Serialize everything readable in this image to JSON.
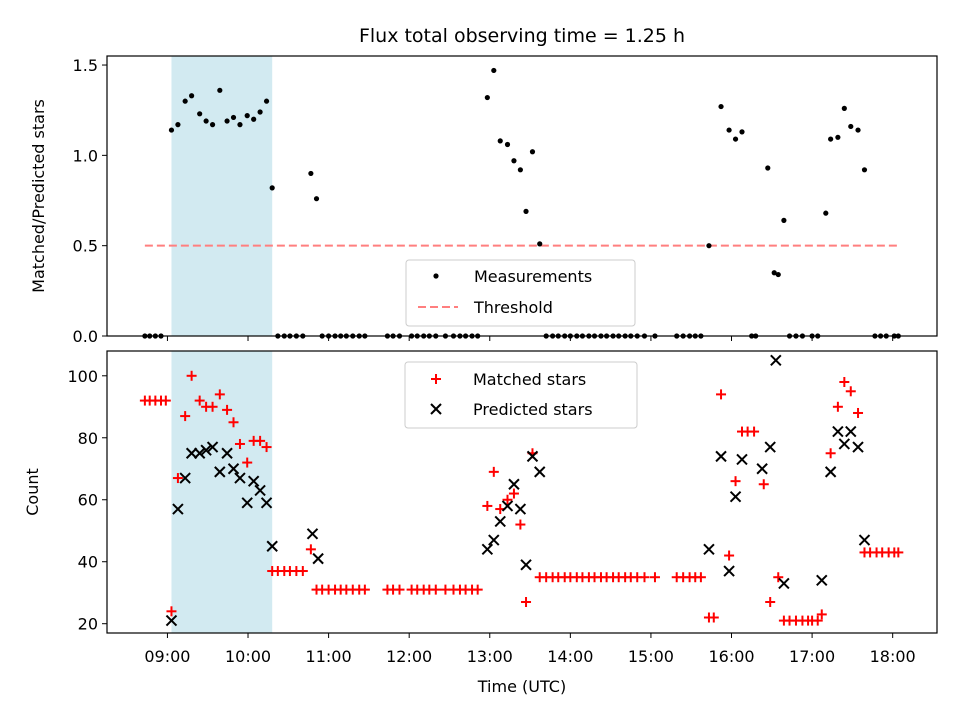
{
  "title": "Flux total observing time = 1.25 h",
  "colors": {
    "highlight": "#add8e6",
    "threshold": "#ff7f7f",
    "measurement": "#000000",
    "matched": "#ff0000",
    "predicted": "#000000"
  },
  "chart_data": [
    {
      "type": "scatter",
      "ylabel": "Matched/Predicted stars",
      "xlim_hours": [
        8.25,
        18.55
      ],
      "ylim": [
        0,
        1.55
      ],
      "yticks": [
        0.0,
        0.5,
        1.0,
        1.5
      ],
      "ytick_labels": [
        "0.0",
        "0.5",
        "1.0",
        "1.5"
      ],
      "highlight_span_hours": [
        9.05,
        10.3
      ],
      "legend": {
        "position": "lower-center",
        "labels": [
          "Measurements",
          "Threshold"
        ]
      },
      "threshold": {
        "name": "Threshold",
        "y": 0.5,
        "x_range_hours": [
          8.72,
          18.1
        ]
      },
      "series": [
        {
          "name": "Measurements",
          "marker": "dot",
          "x": [
            8.72,
            8.78,
            8.85,
            8.92,
            9.05,
            9.13,
            9.22,
            9.3,
            9.4,
            9.48,
            9.56,
            9.65,
            9.74,
            9.82,
            9.9,
            9.99,
            10.07,
            10.15,
            10.23,
            10.3,
            10.37,
            10.45,
            10.52,
            10.6,
            10.68,
            10.78,
            10.85,
            10.92,
            11.0,
            11.08,
            11.15,
            11.22,
            11.3,
            11.38,
            11.45,
            11.73,
            11.8,
            11.88,
            12.03,
            12.1,
            12.18,
            12.25,
            12.33,
            12.45,
            12.55,
            12.63,
            12.7,
            12.78,
            12.85,
            12.97,
            13.05,
            13.13,
            13.22,
            13.3,
            13.38,
            13.45,
            13.53,
            13.62,
            13.7,
            13.78,
            13.85,
            13.93,
            14.0,
            14.08,
            14.15,
            14.23,
            14.3,
            14.38,
            14.45,
            14.53,
            14.6,
            14.68,
            14.75,
            14.83,
            14.92,
            15.05,
            15.32,
            15.4,
            15.48,
            15.55,
            15.62,
            15.72,
            15.87,
            15.97,
            16.05,
            16.13,
            16.25,
            16.3,
            16.45,
            16.53,
            16.58,
            16.65,
            16.72,
            16.8,
            16.88,
            17.0,
            17.07,
            17.17,
            17.23,
            17.32,
            17.4,
            17.48,
            17.57,
            17.65,
            17.78,
            17.85,
            17.92,
            18.02,
            18.07
          ],
          "y": [
            0,
            0,
            0,
            0,
            1.14,
            1.17,
            1.3,
            1.33,
            1.23,
            1.19,
            1.17,
            1.36,
            1.19,
            1.21,
            1.17,
            1.22,
            1.2,
            1.24,
            1.3,
            0.82,
            0,
            0,
            0,
            0,
            0,
            0.9,
            0.76,
            0,
            0,
            0,
            0,
            0,
            0,
            0,
            0,
            0,
            0,
            0,
            0,
            0,
            0,
            0,
            0,
            0,
            0,
            0,
            0,
            0,
            0,
            1.32,
            1.47,
            1.08,
            1.06,
            0.97,
            0.92,
            0.69,
            1.02,
            0.51,
            0,
            0,
            0,
            0,
            0,
            0,
            0,
            0,
            0,
            0,
            0,
            0,
            0,
            0,
            0,
            0,
            0,
            0,
            0,
            0,
            0,
            0,
            0,
            0.5,
            1.27,
            1.14,
            1.09,
            1.13,
            0,
            0,
            0.93,
            0.35,
            0.34,
            0.64,
            0,
            0,
            0,
            0,
            0,
            0.68,
            1.09,
            1.1,
            1.26,
            1.16,
            1.14,
            0.92,
            0,
            0,
            0,
            0,
            0
          ]
        }
      ]
    },
    {
      "type": "scatter",
      "xlabel": "Time (UTC)",
      "ylabel": "Count",
      "xlim_hours": [
        8.25,
        18.55
      ],
      "ylim": [
        17,
        108
      ],
      "yticks": [
        20,
        40,
        60,
        80,
        100
      ],
      "ytick_labels": [
        "20",
        "40",
        "60",
        "80",
        "100"
      ],
      "xticks_hours": [
        9,
        10,
        11,
        12,
        13,
        14,
        15,
        16,
        17,
        18
      ],
      "xtick_labels": [
        "09:00",
        "10:00",
        "11:00",
        "12:00",
        "13:00",
        "14:00",
        "15:00",
        "16:00",
        "17:00",
        "18:00"
      ],
      "highlight_span_hours": [
        9.05,
        10.3
      ],
      "legend": {
        "position": "upper-center",
        "labels": [
          "Matched stars",
          "Predicted stars"
        ]
      },
      "series": [
        {
          "name": "Matched stars",
          "marker": "plus",
          "x": [
            8.72,
            8.78,
            8.85,
            8.92,
            8.98,
            9.05,
            9.13,
            9.22,
            9.3,
            9.4,
            9.48,
            9.56,
            9.65,
            9.74,
            9.82,
            9.9,
            9.99,
            10.07,
            10.15,
            10.23,
            10.3,
            10.37,
            10.45,
            10.52,
            10.6,
            10.68,
            10.78,
            10.85,
            10.92,
            11.0,
            11.08,
            11.15,
            11.22,
            11.3,
            11.38,
            11.45,
            11.73,
            11.8,
            11.88,
            12.03,
            12.1,
            12.18,
            12.25,
            12.33,
            12.45,
            12.55,
            12.63,
            12.7,
            12.78,
            12.85,
            12.97,
            13.05,
            13.13,
            13.22,
            13.3,
            13.38,
            13.45,
            13.53,
            13.62,
            13.7,
            13.78,
            13.85,
            13.93,
            14.0,
            14.08,
            14.15,
            14.23,
            14.3,
            14.38,
            14.45,
            14.53,
            14.6,
            14.68,
            14.75,
            14.83,
            14.92,
            15.05,
            15.32,
            15.4,
            15.48,
            15.55,
            15.62,
            15.72,
            15.78,
            15.87,
            15.97,
            16.05,
            16.13,
            16.2,
            16.28,
            16.4,
            16.48,
            16.58,
            16.65,
            16.72,
            16.8,
            16.88,
            16.95,
            17.0,
            17.07,
            17.12,
            17.23,
            17.32,
            17.4,
            17.48,
            17.57,
            17.65,
            17.72,
            17.8,
            17.87,
            17.95,
            18.02,
            18.07
          ],
          "y": [
            92,
            92,
            92,
            92,
            92,
            24,
            67,
            87,
            100,
            92,
            90,
            90,
            94,
            89,
            85,
            78,
            72,
            79,
            79,
            77,
            37,
            37,
            37,
            37,
            37,
            37,
            44,
            31,
            31,
            31,
            31,
            31,
            31,
            31,
            31,
            31,
            31,
            31,
            31,
            31,
            31,
            31,
            31,
            31,
            31,
            31,
            31,
            31,
            31,
            31,
            58,
            69,
            57,
            60,
            62,
            52,
            27,
            75,
            35,
            35,
            35,
            35,
            35,
            35,
            35,
            35,
            35,
            35,
            35,
            35,
            35,
            35,
            35,
            35,
            35,
            35,
            35,
            35,
            35,
            35,
            35,
            35,
            22,
            22,
            94,
            42,
            66,
            82,
            82,
            82,
            65,
            27,
            35,
            21,
            21,
            21,
            21,
            21,
            21,
            21,
            23,
            75,
            90,
            98,
            95,
            88,
            43,
            43,
            43,
            43,
            43,
            43,
            43
          ]
        },
        {
          "name": "Predicted stars",
          "marker": "x",
          "x": [
            9.05,
            9.13,
            9.22,
            9.3,
            9.4,
            9.48,
            9.56,
            9.65,
            9.74,
            9.82,
            9.9,
            9.99,
            10.07,
            10.15,
            10.23,
            10.3,
            10.8,
            10.87,
            12.97,
            13.05,
            13.13,
            13.22,
            13.3,
            13.38,
            13.45,
            13.53,
            13.62,
            15.72,
            15.87,
            15.97,
            16.05,
            16.13,
            16.38,
            16.48,
            16.55,
            16.65,
            17.12,
            17.23,
            17.32,
            17.4,
            17.48,
            17.57,
            17.65
          ],
          "y": [
            21,
            57,
            67,
            75,
            75,
            76,
            77,
            69,
            75,
            70,
            67,
            59,
            66,
            63,
            59,
            45,
            49,
            41,
            44,
            47,
            53,
            58,
            65,
            57,
            39,
            74,
            69,
            44,
            74,
            37,
            61,
            73,
            70,
            77,
            105,
            33,
            34,
            69,
            82,
            78,
            82,
            77,
            47
          ]
        }
      ]
    }
  ]
}
